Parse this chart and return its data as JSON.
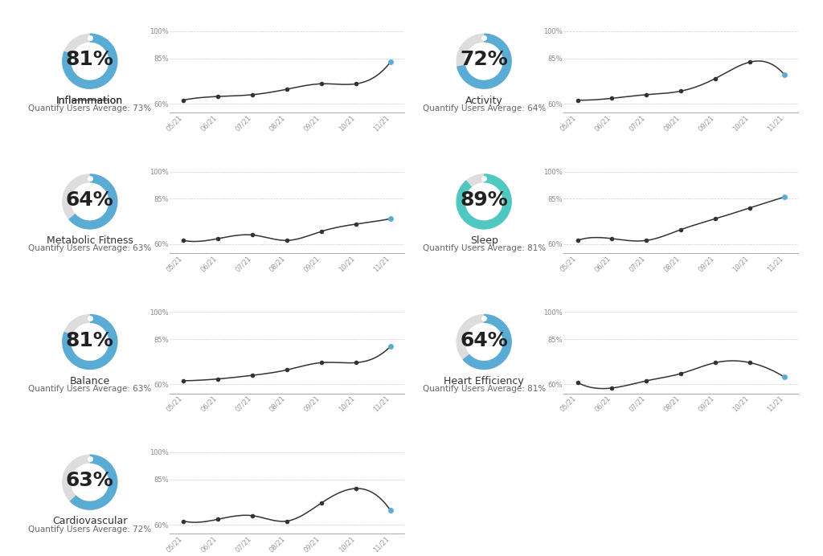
{
  "panels": [
    {
      "title": "Inflammation",
      "subtitle": "Quantify Users Average: 73%",
      "value": 81,
      "ring_color": "#5BACD4",
      "underline": true,
      "data_y": [
        62,
        64,
        65,
        68,
        71,
        71,
        83
      ],
      "last_dot_color": "#5BACD4",
      "row": 0,
      "col": 0
    },
    {
      "title": "Activity",
      "subtitle": "Quantify Users Average: 64%",
      "value": 72,
      "ring_color": "#5BACD4",
      "underline": false,
      "data_y": [
        62,
        63,
        65,
        67,
        74,
        83,
        76
      ],
      "last_dot_color": "#5BACD4",
      "row": 0,
      "col": 1
    },
    {
      "title": "Metabolic Fitness",
      "subtitle": "Quantify Users Average: 63%",
      "value": 64,
      "ring_color": "#5BACD4",
      "underline": false,
      "data_y": [
        62,
        63,
        65,
        62,
        67,
        71,
        74
      ],
      "last_dot_color": "#5BACD4",
      "row": 1,
      "col": 0
    },
    {
      "title": "Sleep",
      "subtitle": "Quantify Users Average: 81%",
      "value": 89,
      "ring_color": "#4EC8C0",
      "underline": false,
      "data_y": [
        62,
        63,
        62,
        68,
        74,
        80,
        86
      ],
      "last_dot_color": "#5BACD4",
      "row": 1,
      "col": 1
    },
    {
      "title": "Balance",
      "subtitle": "Quantify Users Average: 63%",
      "value": 81,
      "ring_color": "#5BACD4",
      "underline": false,
      "data_y": [
        62,
        63,
        65,
        68,
        72,
        72,
        81
      ],
      "last_dot_color": "#5BACD4",
      "row": 2,
      "col": 0
    },
    {
      "title": "Heart Efficiency",
      "subtitle": "Quantify Users Average: 81%",
      "value": 64,
      "ring_color": "#5BACD4",
      "underline": false,
      "data_y": [
        61,
        58,
        62,
        66,
        72,
        72,
        64
      ],
      "last_dot_color": "#5BACD4",
      "row": 2,
      "col": 1
    },
    {
      "title": "Cardiovascular",
      "subtitle": "Quantify Users Average: 72%",
      "value": 63,
      "ring_color": "#5BACD4",
      "underline": false,
      "data_y": [
        62,
        63,
        65,
        62,
        72,
        80,
        68
      ],
      "last_dot_color": "#5BACD4",
      "row": 3,
      "col": 0
    }
  ],
  "x_labels": [
    "05/21",
    "06/21",
    "07/21",
    "08/21",
    "09/21",
    "10/21",
    "11/21"
  ],
  "ylim": [
    55,
    105
  ],
  "yticks": [
    60,
    85,
    100
  ],
  "ytick_labels": [
    "60%",
    "85%",
    "100%"
  ],
  "bg_color": "#FFFFFF",
  "line_color": "#333333",
  "dot_color": "#333333",
  "grid_color": "#CCCCCC",
  "value_fontsize": 18,
  "ring_bg_color": "#DDDDDD"
}
